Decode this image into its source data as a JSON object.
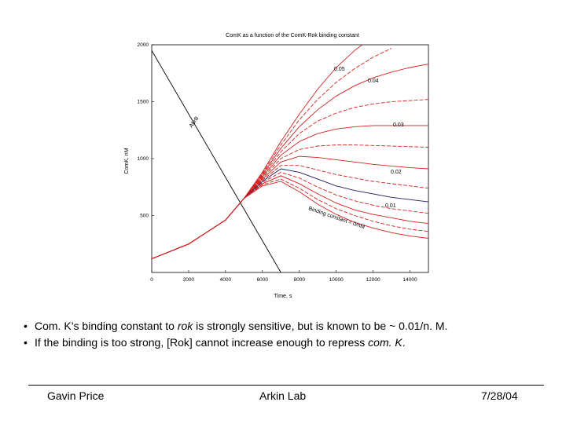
{
  "chart_data": {
    "type": "line",
    "title": "ComK as a function of the ComK-Rok binding constant",
    "xlabel": "Time, s",
    "ylabel": "ComK, nM",
    "xlim": [
      0,
      15000
    ],
    "ylim": [
      0,
      2000
    ],
    "x_ticks": [
      "0",
      "2000",
      "4000",
      "6000",
      "8000",
      "10000",
      "12000",
      "14000"
    ],
    "x_tick_values": [
      0,
      2000,
      4000,
      6000,
      8000,
      10000,
      12000,
      14000
    ],
    "y_ticks": [
      "500",
      "1000",
      "1500",
      "2000"
    ],
    "y_tick_values": [
      500,
      1000,
      1500,
      2000
    ],
    "annotations": [
      "0.05",
      "0.04",
      "0.03",
      "0.02",
      "0.01",
      "Binding constant = 0/nM",
      "AbrB"
    ],
    "colors": {
      "curves": "#d42020",
      "highlight": "#1a1a66",
      "abrb": "#000000"
    },
    "series": [
      {
        "name": "AbrB",
        "color": "#000000",
        "x": [
          0,
          7000
        ],
        "y": [
          1950,
          0
        ]
      },
      {
        "name": "0.05",
        "x": [
          0,
          2000,
          4000,
          5000,
          6000,
          7000,
          8000,
          9000,
          10000,
          11000,
          12000
        ],
        "y": [
          120,
          250,
          460,
          650,
          880,
          1150,
          1390,
          1610,
          1800,
          1950,
          2070
        ]
      },
      {
        "name": "0.04",
        "x": [
          0,
          2000,
          4000,
          5000,
          6000,
          7000,
          8000,
          9000,
          10000,
          11000,
          12000,
          13000
        ],
        "y": [
          120,
          250,
          460,
          650,
          870,
          1120,
          1340,
          1520,
          1670,
          1790,
          1890,
          1970
        ]
      },
      {
        "x": [
          0,
          2000,
          4000,
          5000,
          6000,
          7000,
          8000,
          9000,
          10000,
          11000,
          12000,
          13000,
          14000,
          15000
        ],
        "y": [
          120,
          250,
          460,
          650,
          860,
          1090,
          1280,
          1430,
          1550,
          1640,
          1710,
          1760,
          1800,
          1830
        ]
      },
      {
        "name": "0.03",
        "x": [
          0,
          2000,
          4000,
          5000,
          6000,
          7000,
          8000,
          9000,
          10000,
          11000,
          12000,
          13000,
          14000,
          15000
        ],
        "y": [
          120,
          250,
          460,
          650,
          850,
          1060,
          1220,
          1330,
          1400,
          1450,
          1480,
          1500,
          1510,
          1520
        ]
      },
      {
        "x": [
          0,
          2000,
          4000,
          5000,
          6000,
          7000,
          8000,
          9000,
          10000,
          11000,
          12000,
          13000,
          14000,
          15000
        ],
        "y": [
          120,
          250,
          460,
          650,
          840,
          1030,
          1150,
          1220,
          1260,
          1280,
          1290,
          1290,
          1290,
          1290
        ]
      },
      {
        "x": [
          0,
          2000,
          4000,
          5000,
          6000,
          7000,
          8000,
          9000,
          10000,
          11000,
          12000,
          13000,
          14000,
          15000
        ],
        "y": [
          120,
          250,
          460,
          650,
          830,
          1000,
          1080,
          1110,
          1120,
          1120,
          1115,
          1110,
          1105,
          1100
        ]
      },
      {
        "name": "0.02",
        "x": [
          0,
          2000,
          4000,
          5000,
          6000,
          7000,
          8000,
          9000,
          10000,
          11000,
          12000,
          13000,
          14000,
          15000
        ],
        "y": [
          120,
          250,
          460,
          650,
          820,
          970,
          1020,
          1010,
          990,
          970,
          950,
          935,
          920,
          910
        ]
      },
      {
        "x": [
          0,
          2000,
          4000,
          5000,
          6000,
          7000,
          8000,
          9000,
          10000,
          11000,
          12000,
          13000,
          14000,
          15000
        ],
        "y": [
          120,
          250,
          460,
          650,
          810,
          940,
          940,
          900,
          860,
          830,
          800,
          780,
          760,
          740
        ]
      },
      {
        "name": "0.01",
        "color": "#1a1a66",
        "x": [
          0,
          2000,
          4000,
          5000,
          6000,
          7000,
          8000,
          9000,
          10000,
          11000,
          12000,
          13000,
          14000,
          15000
        ],
        "y": [
          120,
          250,
          460,
          650,
          800,
          910,
          880,
          820,
          760,
          720,
          690,
          660,
          640,
          620
        ]
      },
      {
        "x": [
          0,
          2000,
          4000,
          5000,
          6000,
          7000,
          8000,
          9000,
          10000,
          11000,
          12000,
          13000,
          14000,
          15000
        ],
        "y": [
          120,
          250,
          460,
          650,
          790,
          880,
          830,
          750,
          680,
          630,
          590,
          560,
          540,
          520
        ]
      },
      {
        "x": [
          0,
          2000,
          4000,
          5000,
          6000,
          7000,
          8000,
          9000,
          10000,
          11000,
          12000,
          13000,
          14000,
          15000
        ],
        "y": [
          120,
          250,
          460,
          650,
          780,
          850,
          780,
          690,
          610,
          550,
          510,
          480,
          450,
          430
        ]
      },
      {
        "x": [
          0,
          2000,
          4000,
          5000,
          6000,
          7000,
          8000,
          9000,
          10000,
          11000,
          12000,
          13000,
          14000,
          15000
        ],
        "y": [
          120,
          250,
          460,
          650,
          770,
          820,
          740,
          640,
          560,
          500,
          450,
          410,
          380,
          360
        ]
      },
      {
        "name": "0",
        "x": [
          0,
          2000,
          4000,
          5000,
          6000,
          7000,
          8000,
          9000,
          10000,
          11000,
          12000,
          13000,
          14000,
          15000
        ],
        "y": [
          120,
          250,
          460,
          650,
          760,
          800,
          710,
          600,
          510,
          440,
          390,
          350,
          320,
          300
        ]
      }
    ]
  },
  "bullets": [
    {
      "pre": "Com. K’s binding constant to ",
      "em": "rok",
      "post": " is strongly sensitive, but is known to be ~ 0.01/n. M."
    },
    {
      "pre": "If the binding is too strong, [Rok] cannot increase enough to repress ",
      "em": "com. K",
      "post": "."
    }
  ],
  "bullet_symbol": "•",
  "footer": {
    "left": "Gavin Price",
    "center": "Arkin Lab",
    "right": "7/28/04"
  }
}
